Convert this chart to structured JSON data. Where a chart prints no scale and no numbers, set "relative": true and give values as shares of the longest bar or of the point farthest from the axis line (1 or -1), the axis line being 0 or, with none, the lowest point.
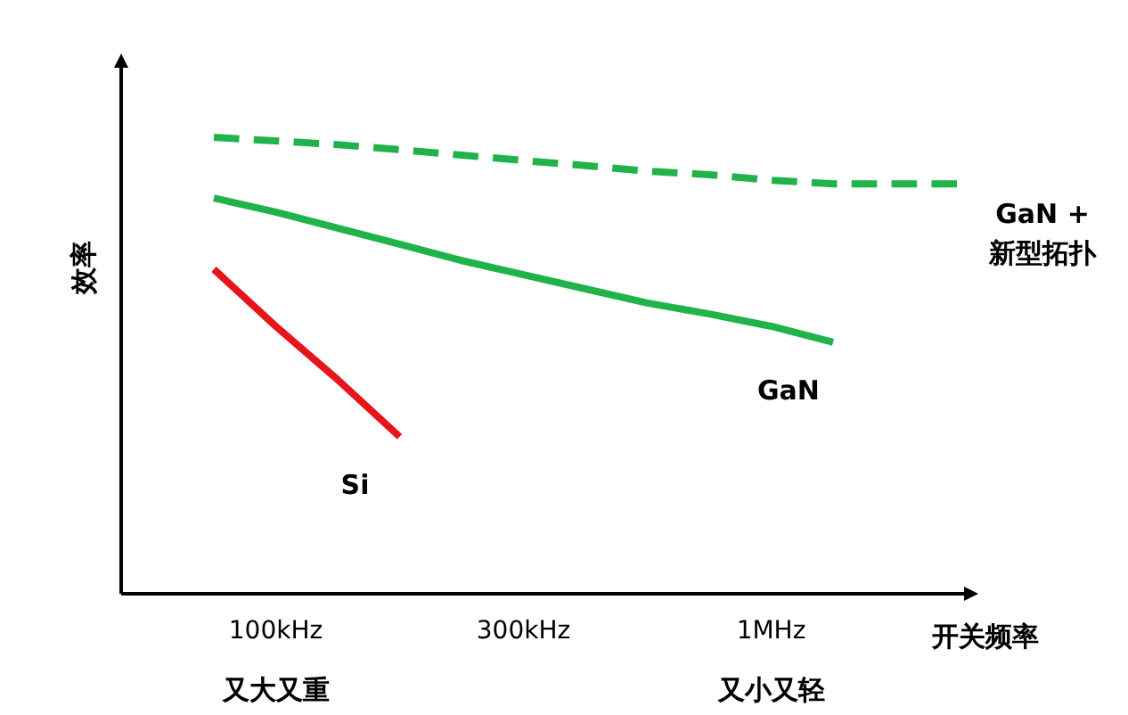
{
  "chart_data": {
    "type": "line",
    "relative": true,
    "xlabel": "开关频率",
    "ylabel": "效率",
    "categories": [
      null,
      "100kHz",
      null,
      null,
      null,
      "300kHz",
      null,
      null,
      null,
      "1MHz",
      null,
      null,
      null
    ],
    "series": [
      {
        "name": "GaN + 新型拓扑",
        "color": "#21b34b",
        "line_style": "dashed",
        "values": [
          1.0,
          0.992,
          0.984,
          0.973,
          0.961,
          0.949,
          0.938,
          0.926,
          0.918,
          0.906,
          0.898,
          0.898,
          0.898
        ]
      },
      {
        "name": "GaN",
        "color": "#21b34b",
        "line_style": "solid",
        "values": [
          0.867,
          0.836,
          0.801,
          0.766,
          0.73,
          0.699,
          0.668,
          0.637,
          0.613,
          0.586,
          0.551,
          null,
          null
        ]
      },
      {
        "name": "Si",
        "color": "#e8141b",
        "line_style": "solid",
        "values": [
          0.711,
          0.586,
          0.469,
          0.344,
          null,
          null,
          null,
          null,
          null,
          null,
          null,
          null,
          null
        ]
      }
    ],
    "annotations": [
      "又大又重",
      "又小又轻"
    ]
  }
}
